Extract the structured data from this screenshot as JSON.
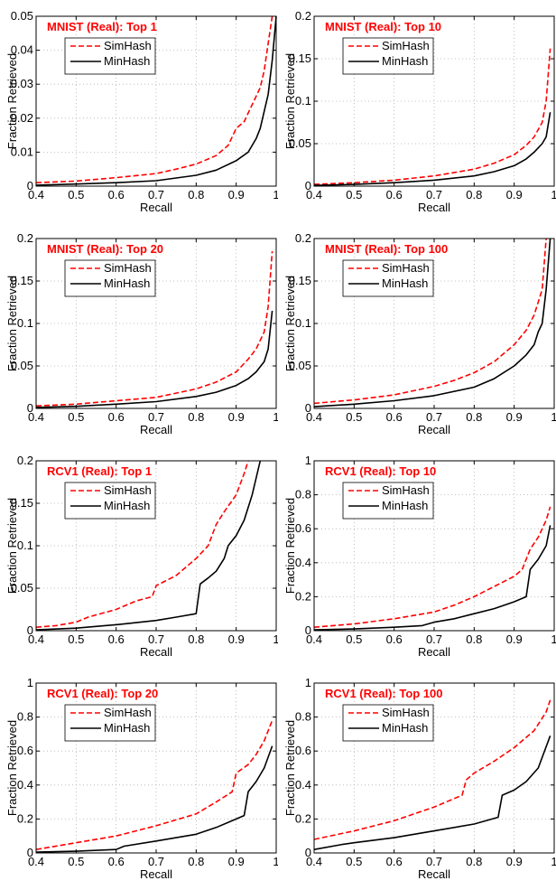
{
  "colors": {
    "simhash": "#ff0000",
    "minhash": "#000000",
    "title": "#ff0000",
    "grid": "#b0b0b0"
  },
  "chart_data": [
    {
      "type": "line",
      "title": "MNIST (Real): Top 1",
      "xlabel": "Recall",
      "ylabel": "Fraction Retrieved",
      "xlim": [
        0.4,
        1
      ],
      "ylim": [
        0,
        0.05
      ],
      "xticks": [
        0.4,
        0.5,
        0.6,
        0.7,
        0.8,
        0.9,
        1
      ],
      "xtick_labels": [
        "0.4",
        "0.5",
        "0.6",
        "0.7",
        "0.8",
        "0.9",
        "1"
      ],
      "yticks": [
        0,
        0.01,
        0.02,
        0.03,
        0.04,
        0.05
      ],
      "ytick_labels": [
        "0",
        "0.01",
        "0.02",
        "0.03",
        "0.04",
        "0.05"
      ],
      "grid": true,
      "legend_position": "top-left",
      "series": [
        {
          "name": "SimHash",
          "style": "dashed",
          "color": "#ff0000",
          "x": [
            0.4,
            0.5,
            0.6,
            0.7,
            0.75,
            0.8,
            0.85,
            0.88,
            0.9,
            0.92,
            0.94,
            0.96,
            0.97,
            0.98,
            0.99
          ],
          "y": [
            0.001,
            0.0015,
            0.0025,
            0.0037,
            0.005,
            0.0065,
            0.009,
            0.012,
            0.017,
            0.019,
            0.024,
            0.029,
            0.034,
            0.042,
            0.05
          ]
        },
        {
          "name": "MinHash",
          "style": "solid",
          "color": "#000000",
          "x": [
            0.4,
            0.5,
            0.6,
            0.7,
            0.8,
            0.85,
            0.9,
            0.93,
            0.95,
            0.96,
            0.97,
            0.98,
            0.99,
            1.0
          ],
          "y": [
            0.0003,
            0.0006,
            0.001,
            0.0016,
            0.0032,
            0.0047,
            0.0075,
            0.01,
            0.014,
            0.017,
            0.022,
            0.027,
            0.037,
            0.05
          ]
        }
      ]
    },
    {
      "type": "line",
      "title": "MNIST (Real): Top 10",
      "xlabel": "Recall",
      "ylabel": "Fraction Retrieved",
      "xlim": [
        0.4,
        1
      ],
      "ylim": [
        0,
        0.2
      ],
      "xticks": [
        0.4,
        0.5,
        0.6,
        0.7,
        0.8,
        0.9,
        1
      ],
      "xtick_labels": [
        "0.4",
        "0.5",
        "0.6",
        "0.7",
        "0.8",
        "0.9",
        "1"
      ],
      "yticks": [
        0,
        0.05,
        0.1,
        0.15,
        0.2
      ],
      "ytick_labels": [
        "0",
        "0.05",
        "0.1",
        "0.15",
        "0.2"
      ],
      "grid": true,
      "legend_position": "top-left",
      "series": [
        {
          "name": "SimHash",
          "style": "dashed",
          "color": "#ff0000",
          "x": [
            0.4,
            0.5,
            0.6,
            0.7,
            0.8,
            0.85,
            0.9,
            0.93,
            0.95,
            0.97,
            0.98,
            0.99
          ],
          "y": [
            0.002,
            0.004,
            0.007,
            0.012,
            0.02,
            0.027,
            0.037,
            0.048,
            0.058,
            0.075,
            0.1,
            0.162
          ]
        },
        {
          "name": "MinHash",
          "style": "solid",
          "color": "#000000",
          "x": [
            0.4,
            0.5,
            0.6,
            0.7,
            0.8,
            0.85,
            0.9,
            0.93,
            0.95,
            0.97,
            0.98,
            0.99
          ],
          "y": [
            0.0008,
            0.002,
            0.004,
            0.007,
            0.012,
            0.017,
            0.024,
            0.032,
            0.04,
            0.05,
            0.058,
            0.087
          ]
        }
      ]
    },
    {
      "type": "line",
      "title": "MNIST (Real): Top 20",
      "xlabel": "Recall",
      "ylabel": "Fraction Retrieved",
      "xlim": [
        0.4,
        1
      ],
      "ylim": [
        0,
        0.2
      ],
      "xticks": [
        0.4,
        0.5,
        0.6,
        0.7,
        0.8,
        0.9,
        1
      ],
      "xtick_labels": [
        "0.4",
        "0.5",
        "0.6",
        "0.7",
        "0.8",
        "0.9",
        "1"
      ],
      "yticks": [
        0,
        0.05,
        0.1,
        0.15,
        0.2
      ],
      "ytick_labels": [
        "0",
        "0.05",
        "0.1",
        "0.15",
        "0.2"
      ],
      "grid": true,
      "legend_position": "top-left",
      "series": [
        {
          "name": "SimHash",
          "style": "dashed",
          "color": "#ff0000",
          "x": [
            0.4,
            0.5,
            0.6,
            0.7,
            0.8,
            0.85,
            0.9,
            0.93,
            0.95,
            0.97,
            0.98,
            0.99
          ],
          "y": [
            0.003,
            0.005,
            0.009,
            0.013,
            0.023,
            0.031,
            0.043,
            0.058,
            0.07,
            0.09,
            0.12,
            0.185
          ]
        },
        {
          "name": "MinHash",
          "style": "solid",
          "color": "#000000",
          "x": [
            0.4,
            0.5,
            0.6,
            0.7,
            0.8,
            0.85,
            0.9,
            0.93,
            0.95,
            0.97,
            0.98,
            0.99
          ],
          "y": [
            0.0012,
            0.0025,
            0.005,
            0.008,
            0.014,
            0.019,
            0.027,
            0.035,
            0.043,
            0.055,
            0.07,
            0.115
          ]
        }
      ]
    },
    {
      "type": "line",
      "title": "MNIST (Real): Top 100",
      "xlabel": "Recall",
      "ylabel": "Fraction Retrieved",
      "xlim": [
        0.4,
        1
      ],
      "ylim": [
        0,
        0.2
      ],
      "xticks": [
        0.4,
        0.5,
        0.6,
        0.7,
        0.8,
        0.9,
        1
      ],
      "xtick_labels": [
        "0.4",
        "0.5",
        "0.6",
        "0.7",
        "0.8",
        "0.9",
        "1"
      ],
      "yticks": [
        0,
        0.05,
        0.1,
        0.15,
        0.2
      ],
      "ytick_labels": [
        "0",
        "0.05",
        "0.1",
        "0.15",
        "0.2"
      ],
      "grid": true,
      "legend_position": "top-left",
      "series": [
        {
          "name": "SimHash",
          "style": "dashed",
          "color": "#ff0000",
          "x": [
            0.4,
            0.5,
            0.6,
            0.7,
            0.75,
            0.8,
            0.85,
            0.9,
            0.93,
            0.95,
            0.97,
            0.98
          ],
          "y": [
            0.006,
            0.01,
            0.016,
            0.026,
            0.033,
            0.042,
            0.055,
            0.075,
            0.092,
            0.11,
            0.14,
            0.2
          ]
        },
        {
          "name": "MinHash",
          "style": "solid",
          "color": "#000000",
          "x": [
            0.4,
            0.5,
            0.6,
            0.7,
            0.8,
            0.85,
            0.9,
            0.93,
            0.95,
            0.96,
            0.97,
            0.98,
            0.99
          ],
          "y": [
            0.002,
            0.005,
            0.009,
            0.015,
            0.025,
            0.035,
            0.05,
            0.063,
            0.075,
            0.09,
            0.1,
            0.14,
            0.2
          ]
        }
      ]
    },
    {
      "type": "line",
      "title": "RCV1 (Real): Top 1",
      "xlabel": "Recall",
      "ylabel": "Fraction Retrieved",
      "xlim": [
        0.4,
        1
      ],
      "ylim": [
        0,
        0.2
      ],
      "xticks": [
        0.4,
        0.5,
        0.6,
        0.7,
        0.8,
        0.9,
        1
      ],
      "xtick_labels": [
        "0.4",
        "0.5",
        "0.6",
        "0.7",
        "0.8",
        "0.9",
        "1"
      ],
      "yticks": [
        0,
        0.05,
        0.1,
        0.15,
        0.2
      ],
      "ytick_labels": [
        "0",
        "0.05",
        "0.1",
        "0.15",
        "0.2"
      ],
      "grid": true,
      "legend_position": "top-left",
      "series": [
        {
          "name": "SimHash",
          "style": "dashed",
          "color": "#ff0000",
          "x": [
            0.4,
            0.45,
            0.5,
            0.53,
            0.6,
            0.65,
            0.69,
            0.7,
            0.75,
            0.8,
            0.83,
            0.85,
            0.87,
            0.9,
            0.92,
            0.93
          ],
          "y": [
            0.004,
            0.006,
            0.01,
            0.016,
            0.025,
            0.035,
            0.04,
            0.053,
            0.065,
            0.085,
            0.1,
            0.125,
            0.14,
            0.16,
            0.185,
            0.2
          ]
        },
        {
          "name": "MinHash",
          "style": "solid",
          "color": "#000000",
          "x": [
            0.4,
            0.5,
            0.6,
            0.7,
            0.75,
            0.8,
            0.81,
            0.83,
            0.85,
            0.87,
            0.88,
            0.9,
            0.92,
            0.94,
            0.96
          ],
          "y": [
            0.001,
            0.003,
            0.007,
            0.012,
            0.016,
            0.02,
            0.055,
            0.062,
            0.07,
            0.085,
            0.1,
            0.112,
            0.13,
            0.16,
            0.2
          ]
        }
      ]
    },
    {
      "type": "line",
      "title": "RCV1 (Real): Top 10",
      "xlabel": "Recall",
      "ylabel": "Fraction Retrieved",
      "xlim": [
        0.4,
        1
      ],
      "ylim": [
        0,
        1
      ],
      "xticks": [
        0.4,
        0.5,
        0.6,
        0.7,
        0.8,
        0.9,
        1
      ],
      "xtick_labels": [
        "0.4",
        "0.5",
        "0.6",
        "0.7",
        "0.8",
        "0.9",
        "1"
      ],
      "yticks": [
        0,
        0.2,
        0.4,
        0.6,
        0.8,
        1
      ],
      "ytick_labels": [
        "0",
        "0.2",
        "0.4",
        "0.6",
        "0.8",
        "1"
      ],
      "grid": true,
      "legend_position": "top-left",
      "series": [
        {
          "name": "SimHash",
          "style": "dashed",
          "color": "#ff0000",
          "x": [
            0.4,
            0.5,
            0.6,
            0.7,
            0.75,
            0.8,
            0.85,
            0.9,
            0.92,
            0.94,
            0.96,
            0.98,
            0.99
          ],
          "y": [
            0.02,
            0.04,
            0.07,
            0.11,
            0.15,
            0.2,
            0.26,
            0.32,
            0.36,
            0.48,
            0.55,
            0.65,
            0.73
          ]
        },
        {
          "name": "MinHash",
          "style": "solid",
          "color": "#000000",
          "x": [
            0.4,
            0.5,
            0.6,
            0.67,
            0.7,
            0.75,
            0.8,
            0.85,
            0.9,
            0.93,
            0.94,
            0.96,
            0.98,
            0.99
          ],
          "y": [
            0.005,
            0.01,
            0.02,
            0.03,
            0.05,
            0.07,
            0.1,
            0.13,
            0.17,
            0.2,
            0.36,
            0.42,
            0.5,
            0.62
          ]
        }
      ]
    },
    {
      "type": "line",
      "title": "RCV1 (Real): Top 20",
      "xlabel": "Recall",
      "ylabel": "Fraction Retrieved",
      "xlim": [
        0.4,
        1
      ],
      "ylim": [
        0,
        1
      ],
      "xticks": [
        0.4,
        0.5,
        0.6,
        0.7,
        0.8,
        0.9,
        1
      ],
      "xtick_labels": [
        "0.4",
        "0.5",
        "0.6",
        "0.7",
        "0.8",
        "0.9",
        "1"
      ],
      "yticks": [
        0,
        0.2,
        0.4,
        0.6,
        0.8,
        1
      ],
      "ytick_labels": [
        "0",
        "0.2",
        "0.4",
        "0.6",
        "0.8",
        "1"
      ],
      "grid": true,
      "legend_position": "top-left",
      "series": [
        {
          "name": "SimHash",
          "style": "dashed",
          "color": "#ff0000",
          "x": [
            0.4,
            0.5,
            0.6,
            0.7,
            0.8,
            0.85,
            0.89,
            0.9,
            0.93,
            0.95,
            0.97,
            0.99
          ],
          "y": [
            0.02,
            0.06,
            0.1,
            0.16,
            0.23,
            0.3,
            0.36,
            0.47,
            0.52,
            0.58,
            0.66,
            0.78
          ]
        },
        {
          "name": "MinHash",
          "style": "solid",
          "color": "#000000",
          "x": [
            0.4,
            0.5,
            0.6,
            0.62,
            0.7,
            0.8,
            0.85,
            0.9,
            0.92,
            0.93,
            0.95,
            0.97,
            0.99
          ],
          "y": [
            0.005,
            0.01,
            0.02,
            0.04,
            0.07,
            0.11,
            0.15,
            0.2,
            0.22,
            0.36,
            0.42,
            0.5,
            0.63
          ]
        }
      ]
    },
    {
      "type": "line",
      "title": "RCV1 (Real): Top 100",
      "xlabel": "Recall",
      "ylabel": "Fraction Retrieved",
      "xlim": [
        0.4,
        1
      ],
      "ylim": [
        0,
        1
      ],
      "xticks": [
        0.4,
        0.5,
        0.6,
        0.7,
        0.8,
        0.9,
        1
      ],
      "xtick_labels": [
        "0.4",
        "0.5",
        "0.6",
        "0.7",
        "0.8",
        "0.9",
        "1"
      ],
      "yticks": [
        0,
        0.2,
        0.4,
        0.6,
        0.8,
        1
      ],
      "ytick_labels": [
        "0",
        "0.2",
        "0.4",
        "0.6",
        "0.8",
        "1"
      ],
      "grid": true,
      "legend_position": "top-left",
      "series": [
        {
          "name": "SimHash",
          "style": "dashed",
          "color": "#ff0000",
          "x": [
            0.4,
            0.5,
            0.6,
            0.7,
            0.77,
            0.78,
            0.8,
            0.85,
            0.9,
            0.95,
            0.98,
            0.99
          ],
          "y": [
            0.08,
            0.13,
            0.19,
            0.27,
            0.34,
            0.43,
            0.47,
            0.54,
            0.62,
            0.72,
            0.83,
            0.9
          ]
        },
        {
          "name": "MinHash",
          "style": "solid",
          "color": "#000000",
          "x": [
            0.4,
            0.47,
            0.5,
            0.6,
            0.7,
            0.8,
            0.86,
            0.87,
            0.9,
            0.93,
            0.96,
            0.99
          ],
          "y": [
            0.02,
            0.05,
            0.06,
            0.09,
            0.13,
            0.17,
            0.21,
            0.34,
            0.37,
            0.42,
            0.5,
            0.69
          ]
        }
      ]
    }
  ]
}
